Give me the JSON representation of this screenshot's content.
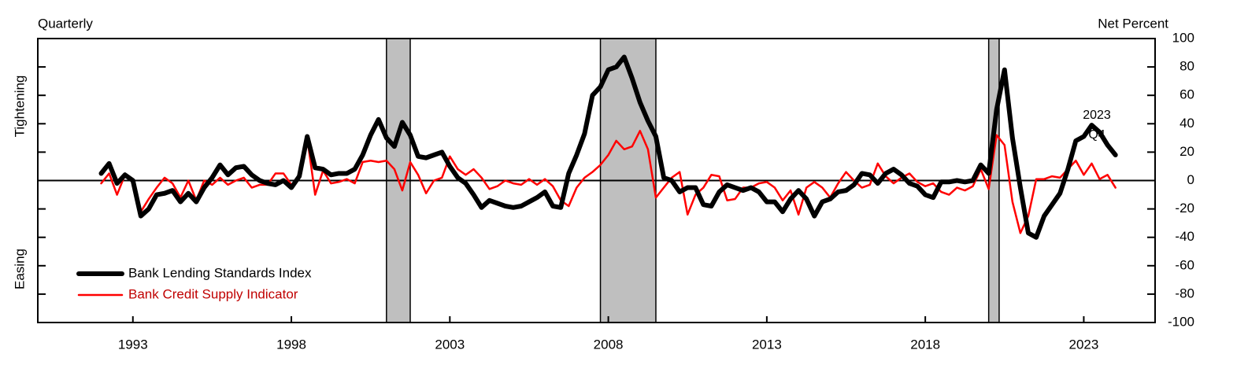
{
  "chart_data": {
    "type": "line",
    "left_title": "Quarterly",
    "right_title": "Net Percent",
    "upper_label": "Tightening",
    "lower_label": "Easing",
    "annotation": [
      "2023",
      "Q4"
    ],
    "xlim": [
      1990,
      2025.25
    ],
    "xticks": [
      1993,
      1998,
      2003,
      2008,
      2013,
      2018,
      2023
    ],
    "ylim": [
      -100,
      100
    ],
    "yticks": [
      -100,
      -80,
      -60,
      -40,
      -20,
      0,
      20,
      40,
      60,
      80,
      100
    ],
    "reference_line": 0,
    "shaded_periods": [
      [
        2001.0,
        2001.75
      ],
      [
        2007.75,
        2009.5
      ],
      [
        2020.0,
        2020.33
      ]
    ],
    "legend": "lower left",
    "x": [
      1992,
      1992.25,
      1992.5,
      1992.75,
      1993,
      1993.25,
      1993.5,
      1993.75,
      1994,
      1994.25,
      1994.5,
      1994.75,
      1995,
      1995.25,
      1995.5,
      1995.75,
      1996,
      1996.25,
      1996.5,
      1996.75,
      1997,
      1997.25,
      1997.5,
      1997.75,
      1998,
      1998.25,
      1998.5,
      1998.75,
      1999,
      1999.25,
      1999.5,
      1999.75,
      2000,
      2000.25,
      2000.5,
      2000.75,
      2001,
      2001.25,
      2001.5,
      2001.75,
      2002,
      2002.25,
      2002.5,
      2002.75,
      2003,
      2003.25,
      2003.5,
      2003.75,
      2004,
      2004.25,
      2004.5,
      2004.75,
      2005,
      2005.25,
      2005.5,
      2005.75,
      2006,
      2006.25,
      2006.5,
      2006.75,
      2007,
      2007.25,
      2007.5,
      2007.75,
      2008,
      2008.25,
      2008.5,
      2008.75,
      2009,
      2009.25,
      2009.5,
      2009.75,
      2010,
      2010.25,
      2010.5,
      2010.75,
      2011,
      2011.25,
      2011.5,
      2011.75,
      2012,
      2012.25,
      2012.5,
      2012.75,
      2013,
      2013.25,
      2013.5,
      2013.75,
      2014,
      2014.25,
      2014.5,
      2014.75,
      2015,
      2015.25,
      2015.5,
      2015.75,
      2016,
      2016.25,
      2016.5,
      2016.75,
      2017,
      2017.25,
      2017.5,
      2017.75,
      2018,
      2018.25,
      2018.5,
      2018.75,
      2019,
      2019.25,
      2019.5,
      2019.75,
      2020,
      2020.25,
      2020.5,
      2020.75,
      2021,
      2021.25,
      2021.5,
      2021.75,
      2022,
      2022.25,
      2022.5,
      2022.75,
      2023,
      2023.25,
      2023.5,
      2023.75,
      2024
    ],
    "series": [
      {
        "name": "Bank Lending Standards Index",
        "color": "#000000",
        "width": 6,
        "values": [
          5,
          12,
          -2,
          4,
          0,
          -25,
          -20,
          -10,
          -9,
          -7,
          -15,
          -9,
          -15,
          -5,
          2,
          11,
          4,
          9,
          10,
          4,
          0,
          -2,
          -3,
          0,
          -5,
          3,
          31,
          9,
          8,
          4,
          5,
          5,
          8,
          18,
          32,
          43,
          30,
          24,
          41,
          32,
          17,
          16,
          18,
          20,
          10,
          2,
          -2,
          -10,
          -19,
          -14,
          -16,
          -18,
          -19,
          -18,
          -15,
          -12,
          -8,
          -18,
          -19,
          5,
          18,
          33,
          60,
          66,
          78,
          80,
          87,
          72,
          55,
          42,
          31,
          2,
          0,
          -8,
          -5,
          -5,
          -17,
          -18,
          -8,
          -3,
          -5,
          -7,
          -5,
          -8,
          -15,
          -15,
          -22,
          -13,
          -7,
          -13,
          -25,
          -15,
          -13,
          -8,
          -7,
          -3,
          5,
          4,
          -2,
          5,
          8,
          4,
          -2,
          -4,
          -10,
          -12,
          -1,
          -1,
          0,
          -1,
          0,
          11,
          5,
          50,
          78,
          30,
          -5,
          -37,
          -40,
          -25,
          -17,
          -9,
          8,
          28,
          31,
          39,
          34,
          25,
          18
        ]
      },
      {
        "name": "Bank Credit Supply Indicator",
        "color": "#ff0000",
        "width": 2.5,
        "values": [
          -2,
          5,
          -10,
          4,
          0,
          -22,
          -13,
          -5,
          2,
          -2,
          -12,
          0,
          -14,
          0,
          -3,
          2,
          -3,
          0,
          2,
          -5,
          -3,
          -3,
          5,
          5,
          -3,
          2,
          30,
          -10,
          7,
          -2,
          -1,
          1,
          -2,
          13,
          14,
          13,
          14,
          8,
          -7,
          13,
          4,
          -9,
          0,
          2,
          17,
          8,
          4,
          8,
          2,
          -6,
          -4,
          0,
          -2,
          -3,
          1,
          -3,
          1,
          -4,
          -14,
          -18,
          -5,
          2,
          6,
          11,
          18,
          28,
          22,
          24,
          35,
          22,
          -12,
          -5,
          2,
          6,
          -24,
          -10,
          -5,
          4,
          3,
          -14,
          -13,
          -5,
          -5,
          -2,
          -1,
          -5,
          -14,
          -7,
          -24,
          -5,
          -1,
          -5,
          -12,
          -2,
          6,
          0,
          -5,
          -3,
          12,
          3,
          -2,
          2,
          5,
          -1,
          -4,
          -2,
          -8,
          -10,
          -5,
          -7,
          -4,
          8,
          -6,
          32,
          25,
          -15,
          -37,
          -25,
          1,
          1,
          3,
          2,
          8,
          14,
          4,
          12,
          1,
          4,
          -5
        ]
      }
    ]
  }
}
